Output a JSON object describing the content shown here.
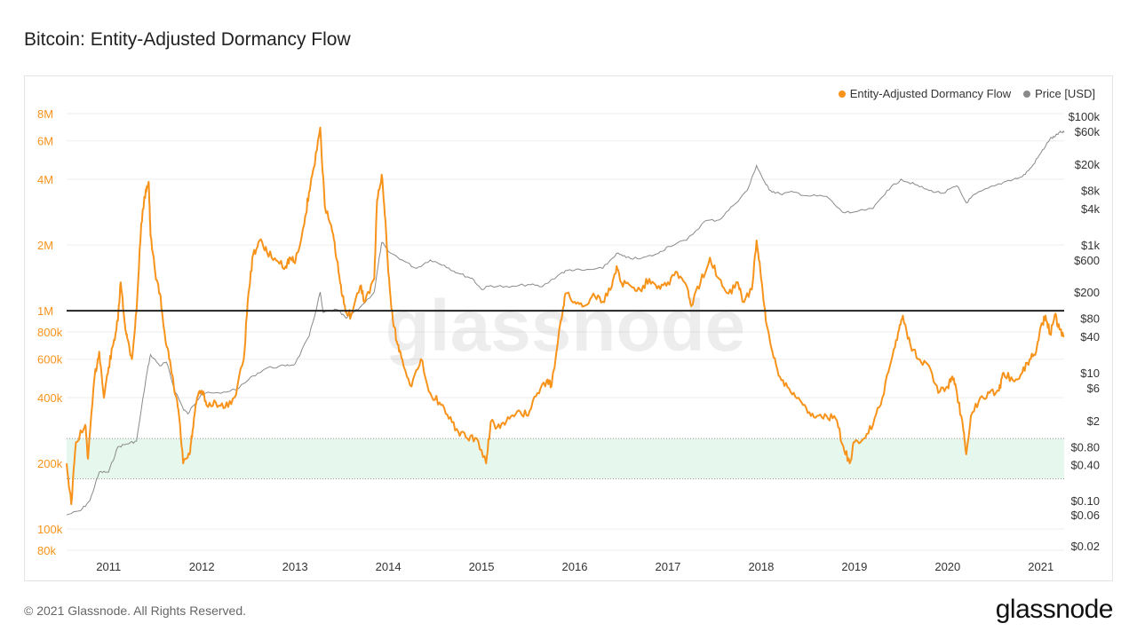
{
  "title": "Bitcoin: Entity-Adjusted Dormancy Flow",
  "footer": {
    "copyright": "© 2021 Glassnode. All Rights Reserved.",
    "logo": "glassnode"
  },
  "watermark": "glassnode",
  "colors": {
    "dormancy": "#f7931a",
    "price": "#8a8a8a",
    "threshold": "#222222",
    "band": "#e6f7ee"
  },
  "chart_data": {
    "type": "line",
    "title": "Bitcoin: Entity-Adjusted Dormancy Flow",
    "legend": [
      "Entity-Adjusted Dormancy Flow",
      "Price [USD]"
    ],
    "legend_position": "top-right",
    "x_ticks": [
      "2011",
      "2012",
      "2013",
      "2014",
      "2015",
      "2016",
      "2017",
      "2018",
      "2019",
      "2020",
      "2021"
    ],
    "x_range": [
      2010.55,
      2021.25
    ],
    "left_axis": {
      "scale": "log",
      "range": [
        80000,
        8000000
      ],
      "ticks": [
        {
          "v": 8000000,
          "label": "8M"
        },
        {
          "v": 6000000,
          "label": "6M"
        },
        {
          "v": 4000000,
          "label": "4M"
        },
        {
          "v": 2000000,
          "label": "2M"
        },
        {
          "v": 1000000,
          "label": "1M"
        },
        {
          "v": 800000,
          "label": "800k"
        },
        {
          "v": 600000,
          "label": "600k"
        },
        {
          "v": 400000,
          "label": "400k"
        },
        {
          "v": 200000,
          "label": "200k"
        },
        {
          "v": 100000,
          "label": "100k"
        },
        {
          "v": 80000,
          "label": "80k"
        }
      ]
    },
    "right_axis": {
      "scale": "log",
      "range": [
        0.02,
        100000
      ],
      "ticks": [
        {
          "v": 100000,
          "label": "$100k"
        },
        {
          "v": 60000,
          "label": "$60k"
        },
        {
          "v": 20000,
          "label": "$20k"
        },
        {
          "v": 8000,
          "label": "$8k"
        },
        {
          "v": 4000,
          "label": "$4k"
        },
        {
          "v": 1000,
          "label": "$1k"
        },
        {
          "v": 600,
          "label": "$600"
        },
        {
          "v": 200,
          "label": "$200"
        },
        {
          "v": 80,
          "label": "$80"
        },
        {
          "v": 40,
          "label": "$40"
        },
        {
          "v": 10,
          "label": "$10"
        },
        {
          "v": 6,
          "label": "$6"
        },
        {
          "v": 2,
          "label": "$2"
        },
        {
          "v": 0.8,
          "label": "$0.80"
        },
        {
          "v": 0.4,
          "label": "$0.40"
        },
        {
          "v": 0.1,
          "label": "$0.10"
        },
        {
          "v": 0.06,
          "label": "$0.06"
        },
        {
          "v": 0.02,
          "label": "$0.02"
        }
      ]
    },
    "threshold_line": 1000000,
    "band_range": [
      170000,
      260000
    ],
    "series": [
      {
        "name": "Entity-Adjusted Dormancy Flow",
        "axis": "left",
        "points": [
          [
            2010.55,
            200000
          ],
          [
            2010.6,
            130000
          ],
          [
            2010.65,
            250000
          ],
          [
            2010.75,
            300000
          ],
          [
            2010.78,
            210000
          ],
          [
            2010.85,
            500000
          ],
          [
            2010.9,
            650000
          ],
          [
            2010.95,
            400000
          ],
          [
            2011.0,
            550000
          ],
          [
            2011.05,
            700000
          ],
          [
            2011.1,
            900000
          ],
          [
            2011.13,
            1350000
          ],
          [
            2011.17,
            900000
          ],
          [
            2011.2,
            750000
          ],
          [
            2011.25,
            600000
          ],
          [
            2011.3,
            1000000
          ],
          [
            2011.35,
            2500000
          ],
          [
            2011.4,
            3600000
          ],
          [
            2011.43,
            3900000
          ],
          [
            2011.45,
            2200000
          ],
          [
            2011.5,
            1500000
          ],
          [
            2011.55,
            1200000
          ],
          [
            2011.6,
            800000
          ],
          [
            2011.65,
            600000
          ],
          [
            2011.7,
            450000
          ],
          [
            2011.75,
            350000
          ],
          [
            2011.8,
            200000
          ],
          [
            2011.87,
            220000
          ],
          [
            2011.9,
            280000
          ],
          [
            2011.95,
            400000
          ],
          [
            2012.0,
            430000
          ],
          [
            2012.05,
            370000
          ],
          [
            2012.15,
            380000
          ],
          [
            2012.25,
            360000
          ],
          [
            2012.35,
            400000
          ],
          [
            2012.45,
            600000
          ],
          [
            2012.5,
            1200000
          ],
          [
            2012.55,
            1800000
          ],
          [
            2012.62,
            2100000
          ],
          [
            2012.7,
            1850000
          ],
          [
            2012.8,
            1700000
          ],
          [
            2012.9,
            1600000
          ],
          [
            2012.95,
            1750000
          ],
          [
            2013.0,
            1650000
          ],
          [
            2013.1,
            2500000
          ],
          [
            2013.15,
            3500000
          ],
          [
            2013.2,
            4500000
          ],
          [
            2013.27,
            6900000
          ],
          [
            2013.32,
            3000000
          ],
          [
            2013.4,
            2300000
          ],
          [
            2013.45,
            1700000
          ],
          [
            2013.5,
            1200000
          ],
          [
            2013.55,
            1000000
          ],
          [
            2013.6,
            950000
          ],
          [
            2013.7,
            1300000
          ],
          [
            2013.75,
            1100000
          ],
          [
            2013.85,
            1400000
          ],
          [
            2013.88,
            3200000
          ],
          [
            2013.93,
            4200000
          ],
          [
            2013.97,
            2600000
          ],
          [
            2014.0,
            1500000
          ],
          [
            2014.05,
            900000
          ],
          [
            2014.1,
            700000
          ],
          [
            2014.15,
            600000
          ],
          [
            2014.25,
            450000
          ],
          [
            2014.35,
            600000
          ],
          [
            2014.45,
            420000
          ],
          [
            2014.55,
            380000
          ],
          [
            2014.65,
            320000
          ],
          [
            2014.75,
            280000
          ],
          [
            2014.85,
            260000
          ],
          [
            2014.95,
            260000
          ],
          [
            2015.05,
            200000
          ],
          [
            2015.1,
            310000
          ],
          [
            2015.2,
            290000
          ],
          [
            2015.3,
            320000
          ],
          [
            2015.4,
            350000
          ],
          [
            2015.5,
            330000
          ],
          [
            2015.6,
            420000
          ],
          [
            2015.7,
            480000
          ],
          [
            2015.75,
            450000
          ],
          [
            2015.85,
            900000
          ],
          [
            2015.9,
            1200000
          ],
          [
            2016.0,
            1100000
          ],
          [
            2016.1,
            1050000
          ],
          [
            2016.2,
            1200000
          ],
          [
            2016.3,
            1100000
          ],
          [
            2016.4,
            1300000
          ],
          [
            2016.45,
            1600000
          ],
          [
            2016.5,
            1350000
          ],
          [
            2016.6,
            1300000
          ],
          [
            2016.7,
            1250000
          ],
          [
            2016.8,
            1400000
          ],
          [
            2016.9,
            1300000
          ],
          [
            2017.0,
            1350000
          ],
          [
            2017.1,
            1500000
          ],
          [
            2017.2,
            1300000
          ],
          [
            2017.25,
            1050000
          ],
          [
            2017.35,
            1350000
          ],
          [
            2017.45,
            1750000
          ],
          [
            2017.55,
            1400000
          ],
          [
            2017.65,
            1200000
          ],
          [
            2017.75,
            1350000
          ],
          [
            2017.8,
            1100000
          ],
          [
            2017.9,
            1250000
          ],
          [
            2017.95,
            2100000
          ],
          [
            2018.0,
            1400000
          ],
          [
            2018.05,
            900000
          ],
          [
            2018.12,
            650000
          ],
          [
            2018.2,
            500000
          ],
          [
            2018.3,
            440000
          ],
          [
            2018.4,
            400000
          ],
          [
            2018.5,
            340000
          ],
          [
            2018.6,
            330000
          ],
          [
            2018.7,
            330000
          ],
          [
            2018.8,
            320000
          ],
          [
            2018.88,
            240000
          ],
          [
            2018.95,
            200000
          ],
          [
            2019.0,
            250000
          ],
          [
            2019.1,
            260000
          ],
          [
            2019.2,
            300000
          ],
          [
            2019.3,
            400000
          ],
          [
            2019.4,
            600000
          ],
          [
            2019.47,
            800000
          ],
          [
            2019.52,
            950000
          ],
          [
            2019.6,
            700000
          ],
          [
            2019.7,
            600000
          ],
          [
            2019.8,
            560000
          ],
          [
            2019.9,
            420000
          ],
          [
            2020.0,
            450000
          ],
          [
            2020.05,
            500000
          ],
          [
            2020.1,
            420000
          ],
          [
            2020.17,
            280000
          ],
          [
            2020.2,
            220000
          ],
          [
            2020.25,
            330000
          ],
          [
            2020.35,
            400000
          ],
          [
            2020.45,
            420000
          ],
          [
            2020.55,
            430000
          ],
          [
            2020.6,
            520000
          ],
          [
            2020.7,
            480000
          ],
          [
            2020.8,
            520000
          ],
          [
            2020.88,
            600000
          ],
          [
            2020.95,
            650000
          ],
          [
            2021.0,
            850000
          ],
          [
            2021.05,
            950000
          ],
          [
            2021.1,
            780000
          ],
          [
            2021.15,
            960000
          ],
          [
            2021.2,
            820000
          ],
          [
            2021.25,
            760000
          ]
        ]
      },
      {
        "name": "Price [USD]",
        "axis": "right",
        "points": [
          [
            2010.55,
            0.06
          ],
          [
            2010.7,
            0.07
          ],
          [
            2010.8,
            0.1
          ],
          [
            2010.9,
            0.3
          ],
          [
            2011.0,
            0.3
          ],
          [
            2011.1,
            0.8
          ],
          [
            2011.2,
            0.9
          ],
          [
            2011.3,
            1
          ],
          [
            2011.4,
            8
          ],
          [
            2011.45,
            20
          ],
          [
            2011.55,
            13
          ],
          [
            2011.62,
            15
          ],
          [
            2011.7,
            6
          ],
          [
            2011.8,
            3
          ],
          [
            2011.85,
            2.5
          ],
          [
            2011.95,
            4
          ],
          [
            2012.0,
            5
          ],
          [
            2012.2,
            5
          ],
          [
            2012.4,
            6
          ],
          [
            2012.55,
            9
          ],
          [
            2012.7,
            12
          ],
          [
            2012.9,
            13
          ],
          [
            2013.0,
            14
          ],
          [
            2013.15,
            40
          ],
          [
            2013.27,
            200
          ],
          [
            2013.3,
            100
          ],
          [
            2013.45,
            110
          ],
          [
            2013.55,
            80
          ],
          [
            2013.7,
            120
          ],
          [
            2013.85,
            200
          ],
          [
            2013.93,
            1100
          ],
          [
            2014.0,
            800
          ],
          [
            2014.15,
            600
          ],
          [
            2014.3,
            450
          ],
          [
            2014.45,
            600
          ],
          [
            2014.6,
            500
          ],
          [
            2014.75,
            380
          ],
          [
            2014.9,
            320
          ],
          [
            2015.0,
            220
          ],
          [
            2015.1,
            250
          ],
          [
            2015.3,
            235
          ],
          [
            2015.5,
            260
          ],
          [
            2015.65,
            240
          ],
          [
            2015.85,
            380
          ],
          [
            2015.95,
            430
          ],
          [
            2016.1,
            420
          ],
          [
            2016.3,
            450
          ],
          [
            2016.45,
            750
          ],
          [
            2016.55,
            650
          ],
          [
            2016.7,
            620
          ],
          [
            2016.9,
            750
          ],
          [
            2017.0,
            950
          ],
          [
            2017.2,
            1200
          ],
          [
            2017.4,
            2500
          ],
          [
            2017.55,
            2600
          ],
          [
            2017.7,
            4500
          ],
          [
            2017.85,
            8000
          ],
          [
            2017.95,
            19000
          ],
          [
            2018.05,
            10000
          ],
          [
            2018.1,
            8000
          ],
          [
            2018.2,
            7000
          ],
          [
            2018.35,
            7500
          ],
          [
            2018.5,
            6500
          ],
          [
            2018.7,
            6400
          ],
          [
            2018.87,
            3500
          ],
          [
            2018.95,
            3400
          ],
          [
            2019.2,
            4000
          ],
          [
            2019.35,
            8000
          ],
          [
            2019.5,
            12000
          ],
          [
            2019.65,
            10000
          ],
          [
            2019.8,
            8000
          ],
          [
            2019.95,
            7200
          ],
          [
            2020.1,
            9500
          ],
          [
            2020.2,
            5000
          ],
          [
            2020.3,
            7000
          ],
          [
            2020.5,
            9500
          ],
          [
            2020.65,
            11500
          ],
          [
            2020.8,
            13000
          ],
          [
            2020.9,
            18000
          ],
          [
            2021.0,
            29000
          ],
          [
            2021.1,
            47000
          ],
          [
            2021.15,
            50000
          ],
          [
            2021.2,
            58000
          ],
          [
            2021.25,
            58000
          ]
        ]
      }
    ]
  }
}
